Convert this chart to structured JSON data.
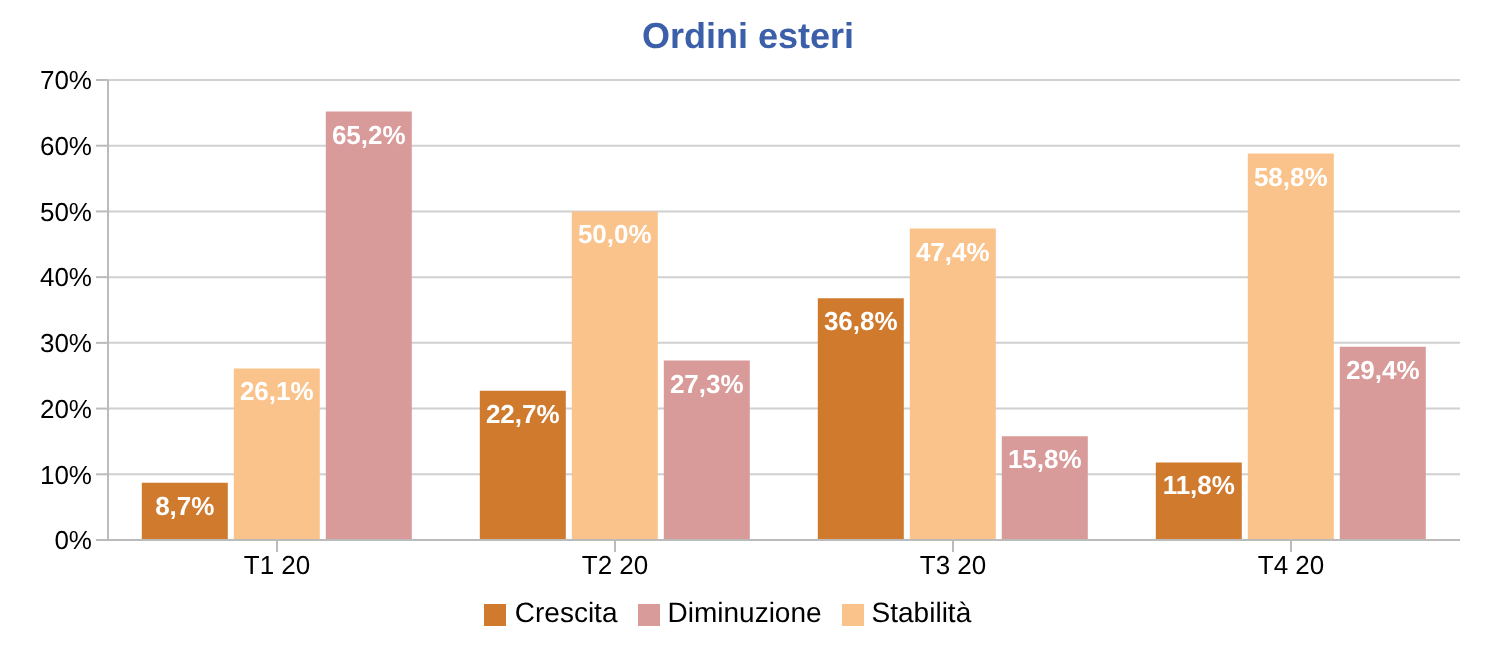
{
  "chart_data": {
    "type": "bar",
    "title": "Ordini esteri",
    "categories": [
      "T1 20",
      "T2 20",
      "T3 20",
      "T4 20"
    ],
    "series": [
      {
        "name": "Crescita",
        "color": "#d07a2e",
        "values": [
          8.7,
          22.7,
          36.8,
          11.8
        ],
        "value_labels": [
          "8,7%",
          "22,7%",
          "36,8%",
          "11,8%"
        ]
      },
      {
        "name": "Stabilità",
        "color": "#f9c38b",
        "values": [
          26.1,
          50.0,
          47.4,
          58.8
        ],
        "value_labels": [
          "26,1%",
          "50,0%",
          "47,4%",
          "58,8%"
        ]
      },
      {
        "name": "Diminuzione",
        "color": "#d99a9a",
        "values": [
          65.2,
          27.3,
          15.8,
          29.4
        ],
        "value_labels": [
          "65,2%",
          "27,3%",
          "15,8%",
          "29,4%"
        ]
      }
    ],
    "ylim": [
      0,
      70
    ],
    "yticks": [
      {
        "value": 0,
        "label": "0%"
      },
      {
        "value": 10,
        "label": "10%"
      },
      {
        "value": 20,
        "label": "20%"
      },
      {
        "value": 30,
        "label": "30%"
      },
      {
        "value": 40,
        "label": "40%"
      },
      {
        "value": 50,
        "label": "50%"
      },
      {
        "value": 60,
        "label": "60%"
      },
      {
        "value": 70,
        "label": "70%"
      }
    ],
    "grid": "y",
    "legend": "bottom"
  }
}
